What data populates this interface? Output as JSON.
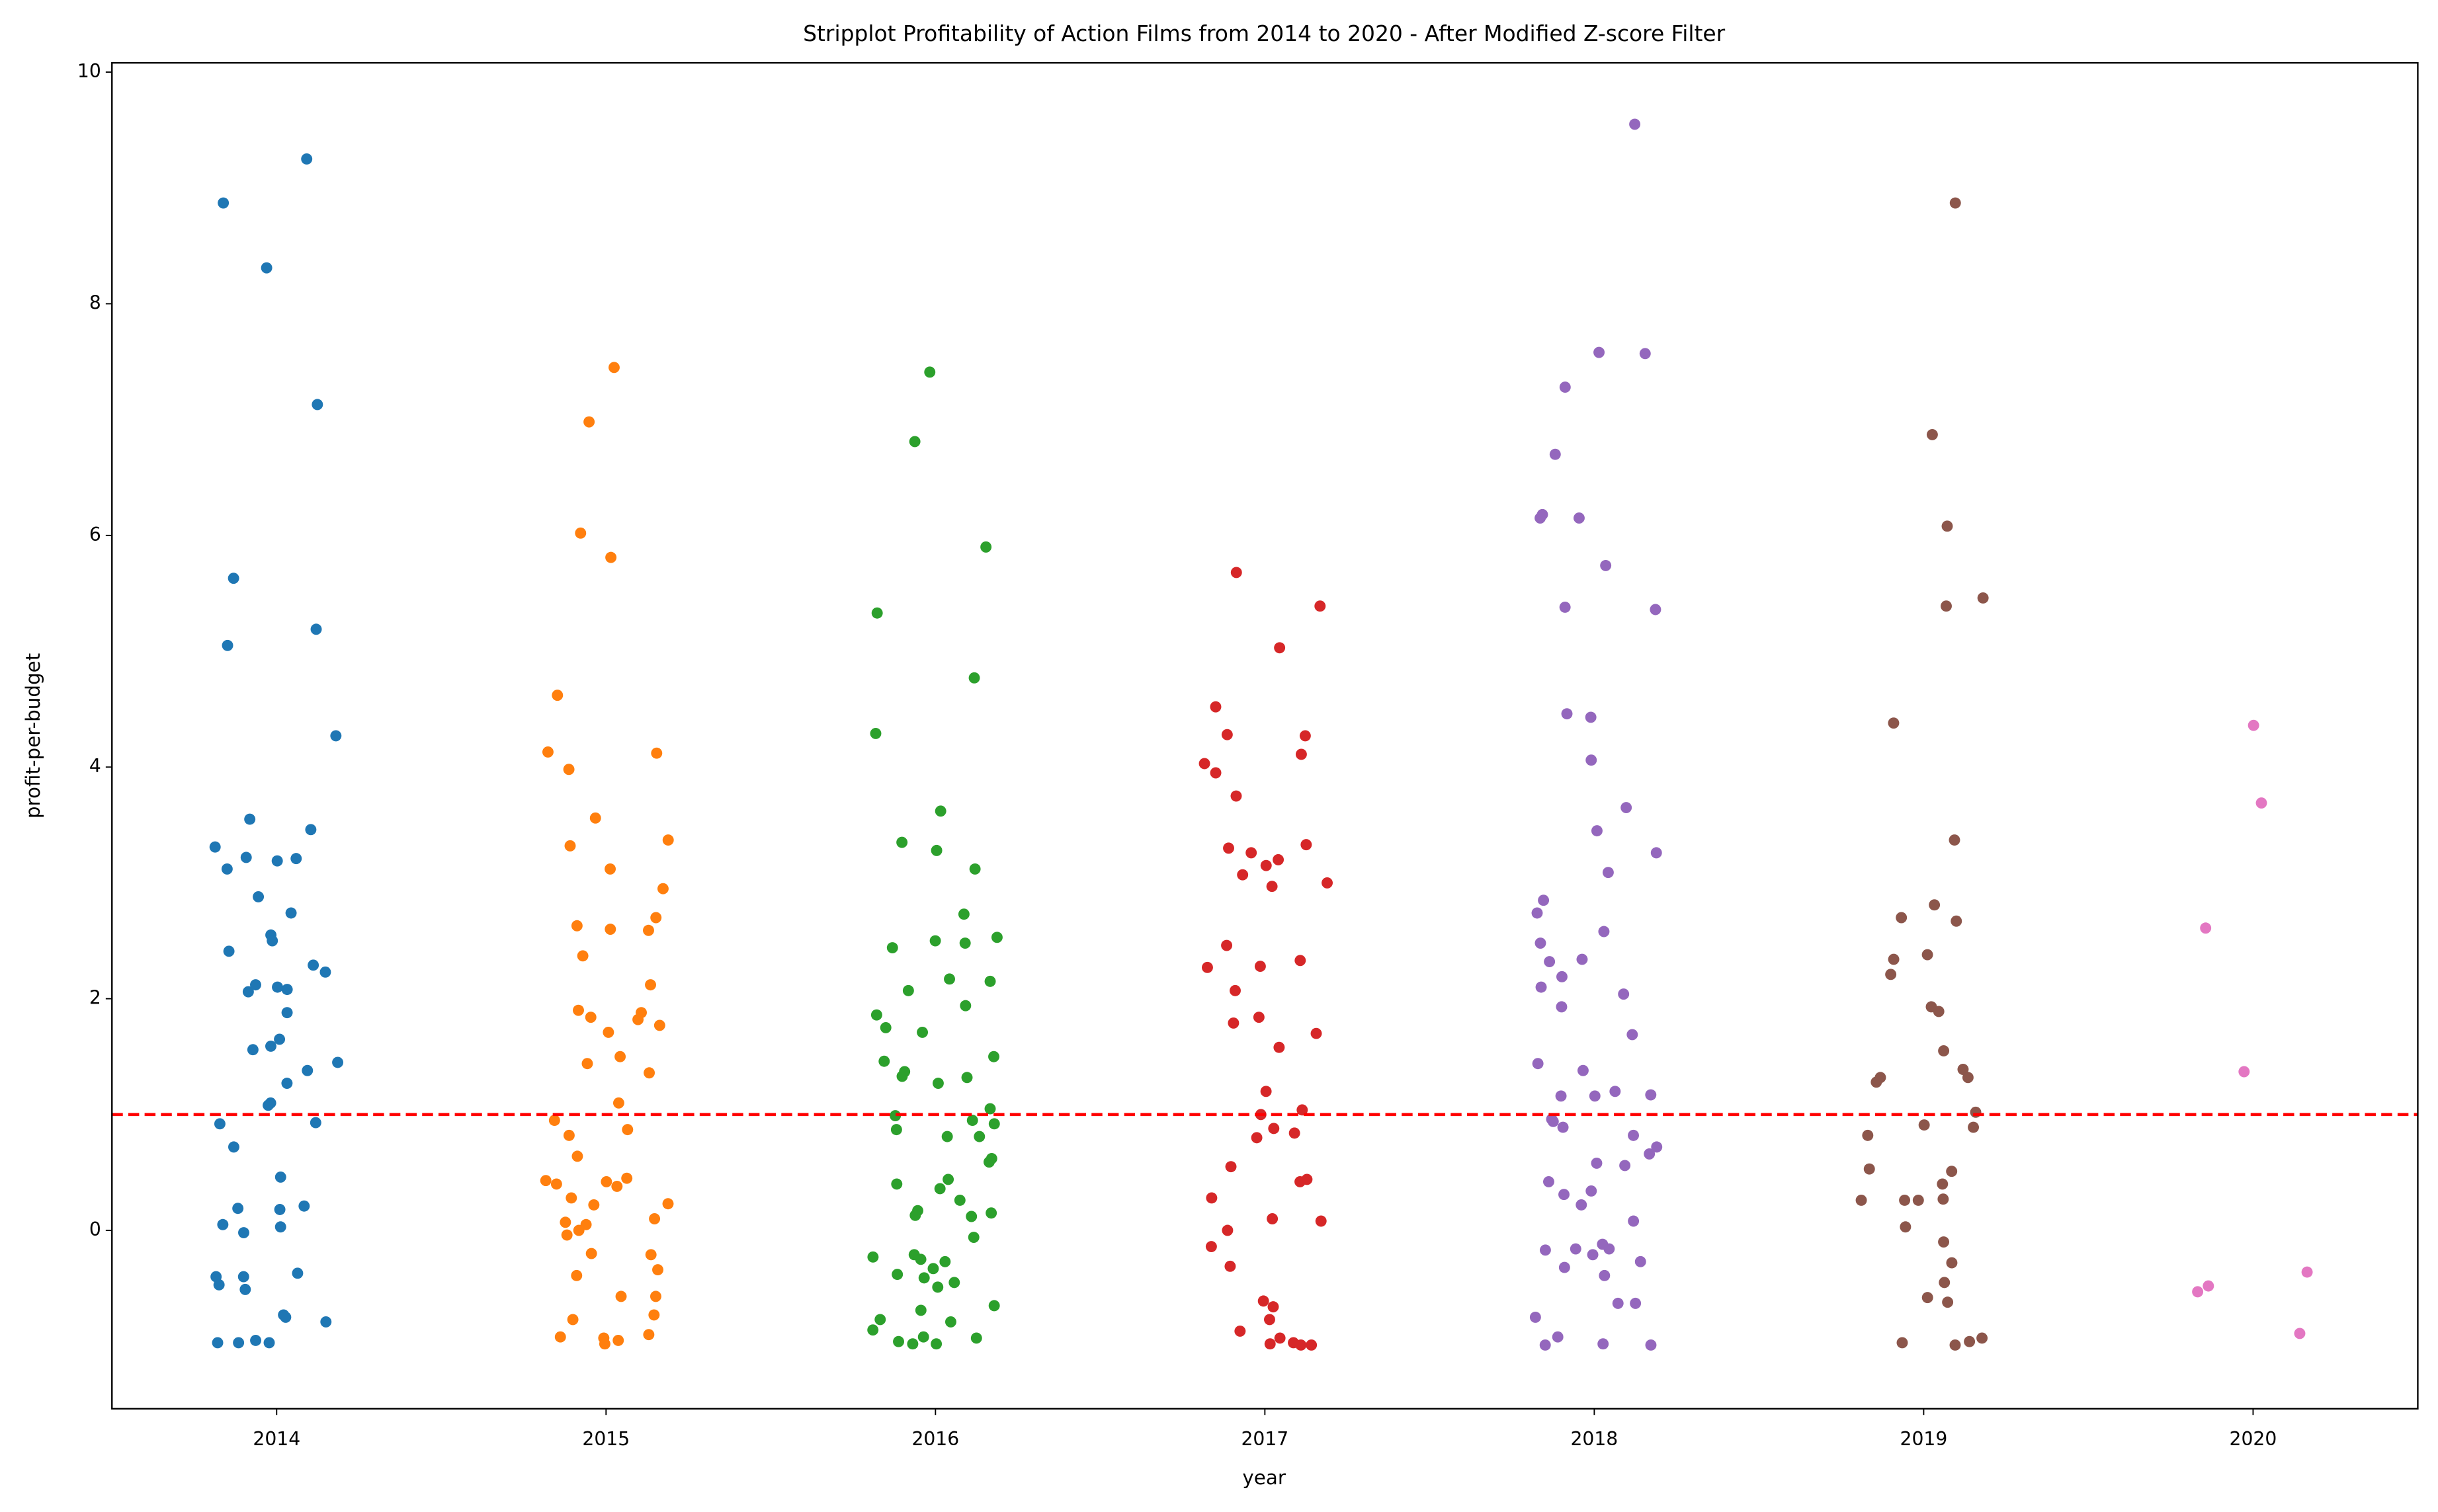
{
  "chart_data": {
    "type": "strip",
    "title": "Stripplot Profitability of Action Films from 2014 to 2020 - After Modified Z-score Filter",
    "x_label": "year",
    "y_label": "profit-per-budget",
    "categories": [
      "2014",
      "2015",
      "2016",
      "2017",
      "2018",
      "2019",
      "2020"
    ],
    "colors": [
      "#1f77b4",
      "#ff7f0e",
      "#2ca02c",
      "#d62728",
      "#9467bd",
      "#8c564b",
      "#e377c2"
    ],
    "values": [
      [
        9.25,
        8.87,
        8.31,
        7.13,
        5.63,
        5.19,
        5.05,
        4.27,
        3.55,
        3.46,
        3.31,
        3.22,
        3.21,
        3.19,
        3.12,
        2.88,
        2.74,
        2.55,
        2.5,
        2.41,
        2.29,
        2.23,
        2.12,
        2.1,
        2.08,
        2.06,
        1.88,
        1.65,
        1.59,
        1.56,
        1.45,
        1.38,
        1.27,
        1.1,
        1.08,
        0.93,
        0.92,
        0.72,
        0.46,
        0.21,
        0.19,
        0.18,
        0.05,
        0.03,
        -0.02,
        -0.37,
        -0.4,
        -0.4,
        -0.47,
        -0.51,
        -0.73,
        -0.75,
        -0.79,
        -0.95,
        -0.97,
        -0.97,
        -0.97
      ],
      [
        7.45,
        6.98,
        6.02,
        5.81,
        4.62,
        4.13,
        4.12,
        3.98,
        3.56,
        3.37,
        3.32,
        3.12,
        2.95,
        2.7,
        2.63,
        2.6,
        2.59,
        2.37,
        2.12,
        1.9,
        1.88,
        1.84,
        1.82,
        1.77,
        1.71,
        1.5,
        1.44,
        1.36,
        1.1,
        0.95,
        0.87,
        0.82,
        0.64,
        0.45,
        0.43,
        0.42,
        0.4,
        0.38,
        0.28,
        0.23,
        0.22,
        0.1,
        0.07,
        0.05,
        0.0,
        -0.04,
        -0.2,
        -0.21,
        -0.34,
        -0.39,
        -0.57,
        -0.57,
        -0.73,
        -0.77,
        -0.9,
        -0.92,
        -0.93,
        -0.95,
        -0.98
      ],
      [
        7.41,
        6.81,
        5.9,
        5.33,
        4.77,
        4.29,
        3.62,
        3.35,
        3.28,
        3.12,
        2.73,
        2.53,
        2.5,
        2.48,
        2.44,
        2.17,
        2.15,
        2.07,
        1.94,
        1.86,
        1.75,
        1.71,
        1.5,
        1.46,
        1.37,
        1.33,
        1.32,
        1.27,
        1.05,
        0.99,
        0.95,
        0.92,
        0.87,
        0.81,
        0.81,
        0.62,
        0.59,
        0.44,
        0.4,
        0.36,
        0.26,
        0.17,
        0.15,
        0.13,
        0.12,
        -0.06,
        -0.21,
        -0.23,
        -0.25,
        -0.27,
        -0.33,
        -0.38,
        -0.41,
        -0.45,
        -0.49,
        -0.65,
        -0.69,
        -0.77,
        -0.79,
        -0.86,
        -0.92,
        -0.93,
        -0.96,
        -0.98,
        -0.98
      ],
      [
        5.68,
        5.39,
        5.03,
        4.52,
        4.28,
        4.27,
        4.11,
        4.03,
        3.95,
        3.75,
        3.33,
        3.3,
        3.26,
        3.2,
        3.15,
        3.07,
        3.0,
        2.97,
        2.46,
        2.33,
        2.28,
        2.27,
        2.07,
        1.84,
        1.79,
        1.7,
        1.58,
        1.2,
        1.04,
        1.0,
        0.88,
        0.84,
        0.8,
        0.55,
        0.44,
        0.42,
        0.28,
        0.1,
        0.08,
        0.0,
        -0.14,
        -0.31,
        -0.61,
        -0.66,
        -0.77,
        -0.87,
        -0.93,
        -0.97,
        -0.98,
        -0.99,
        -0.99
      ],
      [
        9.55,
        7.58,
        7.57,
        7.28,
        6.7,
        6.18,
        6.15,
        6.15,
        5.74,
        5.38,
        5.36,
        4.46,
        4.43,
        4.06,
        3.65,
        3.45,
        3.26,
        3.09,
        2.85,
        2.74,
        2.58,
        2.48,
        2.34,
        2.32,
        2.19,
        2.1,
        2.04,
        1.93,
        1.69,
        1.44,
        1.38,
        1.2,
        1.17,
        1.16,
        1.16,
        0.96,
        0.94,
        0.89,
        0.82,
        0.72,
        0.66,
        0.58,
        0.56,
        0.42,
        0.34,
        0.31,
        0.22,
        0.08,
        -0.12,
        -0.16,
        -0.16,
        -0.17,
        -0.21,
        -0.27,
        -0.32,
        -0.39,
        -0.63,
        -0.63,
        -0.75,
        -0.92,
        -0.98,
        -0.99,
        -0.99
      ],
      [
        8.87,
        6.87,
        6.08,
        5.46,
        5.39,
        4.38,
        3.37,
        2.81,
        2.7,
        2.67,
        2.38,
        2.34,
        2.21,
        1.93,
        1.89,
        1.55,
        1.39,
        1.32,
        1.32,
        1.28,
        1.02,
        0.91,
        0.89,
        0.82,
        0.53,
        0.51,
        0.4,
        0.27,
        0.26,
        0.26,
        0.26,
        0.03,
        -0.1,
        -0.28,
        -0.45,
        -0.58,
        -0.62,
        -0.93,
        -0.96,
        -0.97,
        -0.99
      ],
      [
        4.36,
        3.69,
        2.61,
        1.37,
        -0.36,
        -0.48,
        -0.53,
        -0.89
      ]
    ],
    "ylim": [
      -1.54,
      10.08
    ],
    "yticks": [
      0,
      2,
      4,
      6,
      8,
      10
    ],
    "hline": {
      "value": 1,
      "color": "#ff0000",
      "style": "dashed"
    },
    "grid": false
  }
}
